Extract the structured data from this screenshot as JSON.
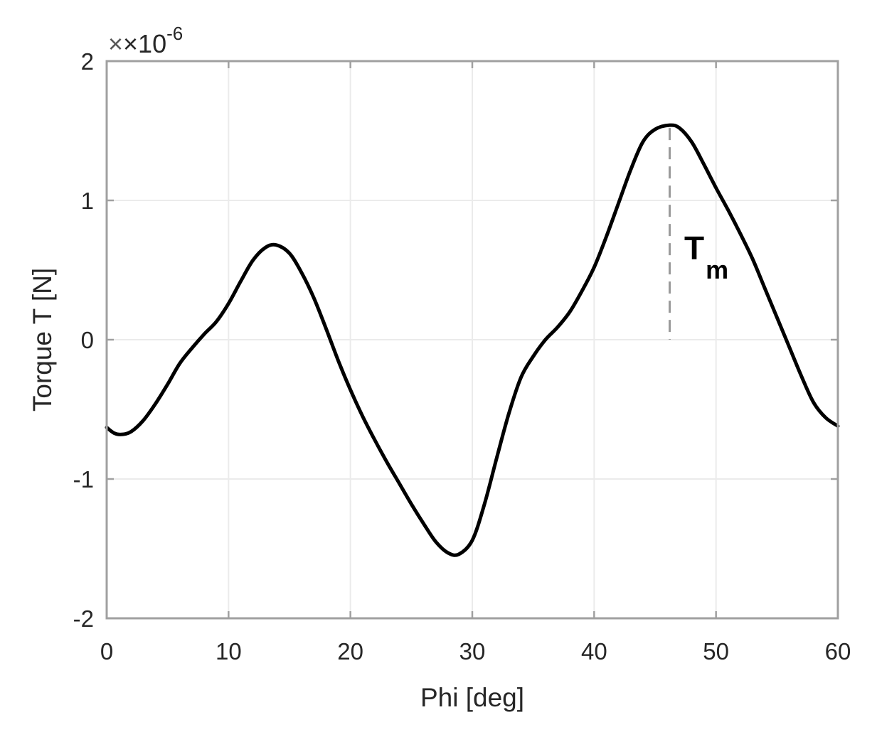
{
  "chart_data": {
    "type": "line",
    "title": "",
    "xlabel": "Phi [deg]",
    "ylabel": "Torque T [N]",
    "xlim": [
      0,
      60
    ],
    "ylim": [
      -2,
      2
    ],
    "y_scale_factor": "×10^-6",
    "x_ticks": [
      0,
      10,
      20,
      30,
      40,
      50,
      60
    ],
    "x_tick_labels": [
      "0",
      "10",
      "20",
      "30",
      "40",
      "50",
      "60"
    ],
    "y_ticks": [
      -2,
      -1,
      0,
      1,
      2
    ],
    "y_tick_labels": [
      "-2",
      "-1",
      "0",
      "1",
      "2"
    ],
    "grid": true,
    "legend": null,
    "series": [
      {
        "name": "Torque T",
        "color": "#000000",
        "x": [
          0,
          0.6,
          1.2,
          2,
          3,
          4,
          5,
          6,
          7,
          8,
          9,
          10,
          11,
          12,
          13,
          13.9,
          15,
          16,
          17,
          18,
          19,
          20,
          21,
          22,
          23,
          24,
          25,
          26,
          27,
          28,
          28.9,
          30,
          31,
          32,
          33,
          34,
          35,
          36,
          37,
          38,
          39,
          40,
          41,
          42,
          43,
          44,
          45,
          46.2,
          47,
          48,
          49,
          50,
          51,
          52,
          53,
          54,
          55,
          56,
          57,
          58,
          59,
          60
        ],
        "y": [
          -0.63,
          -0.67,
          -0.68,
          -0.66,
          -0.58,
          -0.46,
          -0.32,
          -0.17,
          -0.06,
          0.04,
          0.13,
          0.26,
          0.42,
          0.57,
          0.66,
          0.68,
          0.62,
          0.48,
          0.3,
          0.08,
          -0.15,
          -0.36,
          -0.55,
          -0.72,
          -0.88,
          -1.03,
          -1.18,
          -1.32,
          -1.45,
          -1.53,
          -1.54,
          -1.44,
          -1.18,
          -0.85,
          -0.53,
          -0.27,
          -0.12,
          0.0,
          0.09,
          0.2,
          0.35,
          0.52,
          0.74,
          0.98,
          1.22,
          1.42,
          1.51,
          1.54,
          1.52,
          1.42,
          1.26,
          1.09,
          0.93,
          0.76,
          0.58,
          0.37,
          0.16,
          -0.05,
          -0.26,
          -0.45,
          -0.56,
          -0.62
        ]
      }
    ],
    "annotations": [
      {
        "type": "dashed-vline",
        "x": 46.2,
        "y_from": 0.0,
        "y_to": 1.52,
        "color": "#999999"
      },
      {
        "type": "text",
        "text": "T",
        "subscript": "m",
        "x": 47.5,
        "y": 0.6
      }
    ]
  },
  "axes": {
    "exponent_base": "×10",
    "exponent_power": "-6"
  },
  "colors": {
    "axis": "#a0a0a0",
    "grid": "#ebebeb",
    "line": "#000000",
    "dashed": "#9a9a9a",
    "text": "#262626"
  }
}
